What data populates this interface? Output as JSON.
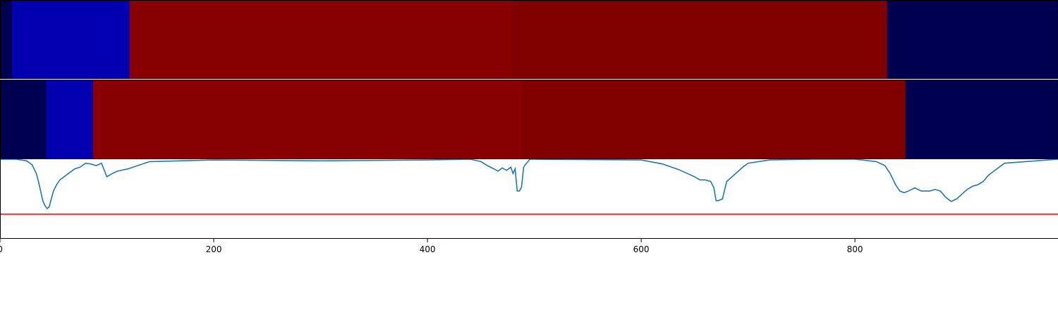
{
  "chart_data": [
    {
      "type": "heatmap",
      "xlim": [
        0,
        990
      ],
      "segments": [
        {
          "start": 0,
          "end": 11,
          "color": "#000050"
        },
        {
          "start": 11,
          "end": 121,
          "color": "#0000b0"
        },
        {
          "start": 121,
          "end": 480,
          "color": "#880000"
        },
        {
          "start": 480,
          "end": 830,
          "color": "#800000"
        },
        {
          "start": 830,
          "end": 990,
          "color": "#000050"
        }
      ]
    },
    {
      "type": "heatmap",
      "xlim": [
        0,
        990
      ],
      "segments": [
        {
          "start": 0,
          "end": 43,
          "color": "#000050"
        },
        {
          "start": 43,
          "end": 87,
          "color": "#0000b0"
        },
        {
          "start": 87,
          "end": 488,
          "color": "#880000"
        },
        {
          "start": 488,
          "end": 847,
          "color": "#800000"
        },
        {
          "start": 847,
          "end": 990,
          "color": "#000050"
        }
      ]
    },
    {
      "type": "line",
      "xlim": [
        0,
        990
      ],
      "ylim": [
        0,
        1
      ],
      "grid": false,
      "xticks": [
        0,
        200,
        400,
        600,
        800
      ],
      "line_color": "#1f77b4",
      "threshold": {
        "y": 0.31,
        "color": "#ff0000"
      },
      "series": [
        {
          "x": [
            0,
            15,
            25,
            30,
            34,
            36,
            38,
            40,
            42,
            44,
            46,
            48,
            50,
            53,
            56,
            60,
            65,
            70,
            75,
            80,
            85,
            90,
            95,
            100,
            105,
            110,
            120,
            140,
            200,
            300,
            400,
            440,
            450,
            456,
            462,
            466,
            470,
            474,
            478,
            480,
            482,
            484,
            486,
            488,
            490,
            492,
            494,
            496,
            500,
            600,
            620,
            635,
            650,
            655,
            660,
            665,
            668,
            670,
            672,
            676,
            680,
            685,
            690,
            695,
            700,
            720,
            760,
            800,
            820,
            828,
            833,
            838,
            842,
            846,
            850,
            856,
            862,
            870,
            875,
            880,
            885,
            890,
            895,
            900,
            905,
            910,
            915,
            920,
            925,
            930,
            940,
            990
          ],
          "y": [
            1.0,
            1.0,
            0.98,
            0.93,
            0.82,
            0.72,
            0.6,
            0.48,
            0.42,
            0.38,
            0.4,
            0.5,
            0.6,
            0.68,
            0.74,
            0.78,
            0.83,
            0.88,
            0.9,
            0.95,
            0.94,
            0.92,
            0.95,
            0.78,
            0.82,
            0.85,
            0.88,
            0.97,
            0.99,
            0.98,
            0.99,
            1.0,
            0.97,
            0.92,
            0.88,
            0.85,
            0.89,
            0.86,
            0.9,
            0.82,
            0.88,
            0.6,
            0.6,
            0.65,
            0.9,
            0.94,
            0.97,
            1.0,
            1.0,
            0.99,
            0.94,
            0.87,
            0.78,
            0.74,
            0.74,
            0.72,
            0.64,
            0.48,
            0.48,
            0.5,
            0.72,
            0.78,
            0.84,
            0.9,
            0.95,
            0.99,
            1.0,
            1.0,
            0.97,
            0.92,
            0.82,
            0.68,
            0.6,
            0.58,
            0.6,
            0.64,
            0.6,
            0.6,
            0.62,
            0.6,
            0.52,
            0.47,
            0.5,
            0.56,
            0.62,
            0.66,
            0.68,
            0.72,
            0.8,
            0.85,
            0.95,
            1.0
          ]
        }
      ]
    }
  ]
}
